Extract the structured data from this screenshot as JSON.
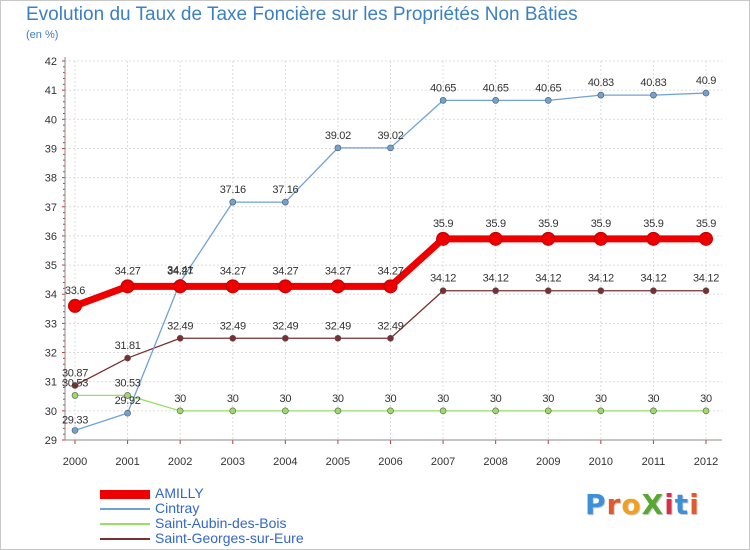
{
  "title": "Evolution du Taux de Taxe Foncière sur les Propriétés Non Bâties",
  "unit": "(en %)",
  "logo": {
    "text": "ProXiti",
    "colors": [
      "#3d8fd8",
      "#e05a2b",
      "#f0a020",
      "#5aa832",
      "#d8304a",
      "#3d8fd8",
      "#e05a2b"
    ]
  },
  "chart_data": {
    "type": "line",
    "title": "Evolution du Taux de Taxe Foncière sur les Propriétés Non Bâties",
    "ylabel": "(en %)",
    "xlabel": "",
    "ylim": [
      29,
      42
    ],
    "yticks": [
      "29",
      "30",
      "31",
      "32",
      "33",
      "34",
      "35",
      "36",
      "37",
      "38",
      "39",
      "40",
      "41",
      "42"
    ],
    "x": [
      "2000",
      "2001",
      "2002",
      "2003",
      "2004",
      "2005",
      "2006",
      "2007",
      "2008",
      "2009",
      "2010",
      "2011",
      "2012"
    ],
    "grid": true,
    "legend": "bottom-left",
    "series": [
      {
        "name": "AMILLY",
        "color": "#ee0000",
        "thick": true,
        "values": [
          33.6,
          34.27,
          34.27,
          34.27,
          34.27,
          34.27,
          34.27,
          35.9,
          35.9,
          35.9,
          35.9,
          35.9,
          35.9
        ],
        "labels": [
          "33.6",
          "34.27",
          "34.27",
          "34.27",
          "34.27",
          "34.27",
          "34.27",
          "35.9",
          "35.9",
          "35.9",
          "35.9",
          "35.9",
          "35.9"
        ]
      },
      {
        "name": "Cintray",
        "color": "#6fa3d6",
        "thick": false,
        "values": [
          29.33,
          29.92,
          34.41,
          37.16,
          37.16,
          39.02,
          39.02,
          40.65,
          40.65,
          40.65,
          40.83,
          40.83,
          40.9
        ],
        "labels": [
          "29.33",
          "29.92",
          "34.41",
          "37.16",
          "37.16",
          "39.02",
          "39.02",
          "40.65",
          "40.65",
          "40.65",
          "40.83",
          "40.83",
          "40.9"
        ]
      },
      {
        "name": "Saint-Aubin-des-Bois",
        "color": "#99dd66",
        "thick": false,
        "values": [
          30.53,
          30.53,
          30.0,
          30.0,
          30.0,
          30.0,
          30.0,
          30.0,
          30.0,
          30.0,
          30.0,
          30.0,
          30.0
        ],
        "labels": [
          "30.53",
          "30.53",
          "30",
          "30",
          "30",
          "30",
          "30",
          "30",
          "30",
          "30",
          "30",
          "30",
          "30"
        ]
      },
      {
        "name": "Saint-Georges-sur-Eure",
        "color": "#7a3030",
        "thick": false,
        "values": [
          30.87,
          31.81,
          32.49,
          32.49,
          32.49,
          32.49,
          32.49,
          34.12,
          34.12,
          34.12,
          34.12,
          34.12,
          34.12
        ],
        "labels": [
          "30.87",
          "31.81",
          "32.49",
          "32.49",
          "32.49",
          "32.49",
          "32.49",
          "34.12",
          "34.12",
          "34.12",
          "34.12",
          "34.12",
          "34.12"
        ]
      }
    ]
  }
}
